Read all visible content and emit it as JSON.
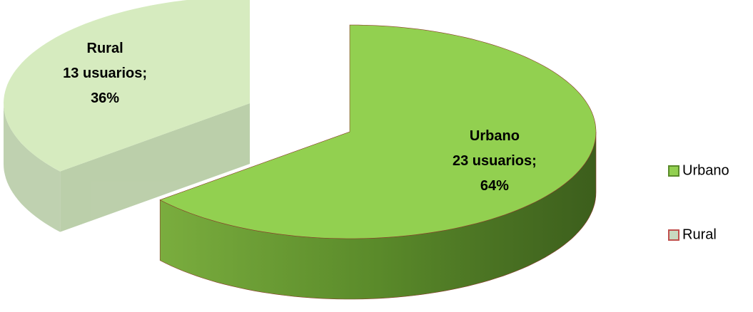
{
  "chart_data": {
    "type": "pie",
    "categories": [
      "Urbano",
      "Rural"
    ],
    "values": [
      64,
      36
    ],
    "value_labels": [
      "64%",
      "36%"
    ],
    "counts": [
      23,
      13
    ],
    "count_labels": [
      "23 usuarios;",
      "13 usuarios;"
    ],
    "colors": [
      "#92d050",
      "#cfe8b4"
    ],
    "legend": "right"
  }
}
